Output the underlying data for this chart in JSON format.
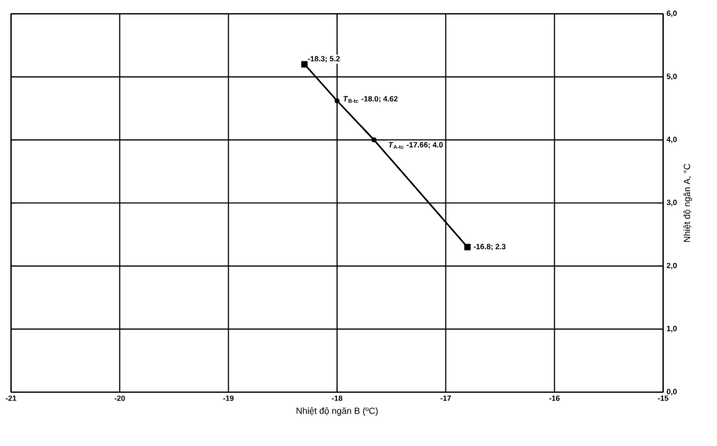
{
  "chart_data": {
    "type": "line",
    "xlabel": "Nhiệt độ ngăn B (ºC)",
    "ylabel": "Nhiệt độ ngăn A, °C",
    "xlim": [
      -21,
      -15
    ],
    "ylim": [
      0,
      6
    ],
    "xticks": [
      -21,
      -20,
      -19,
      -18,
      -17,
      -16,
      -15
    ],
    "yticks": [
      {
        "value": 0,
        "label": "0,0"
      },
      {
        "value": 1,
        "label": "1,0"
      },
      {
        "value": 2,
        "label": "2,0"
      },
      {
        "value": 3,
        "label": "3,0"
      },
      {
        "value": 4,
        "label": "4,0"
      },
      {
        "value": 5,
        "label": "5,0"
      },
      {
        "value": 6,
        "label": "6,0"
      }
    ],
    "grid": true,
    "series": [
      {
        "color": "#000000",
        "marker": "circle",
        "x": [
          -18.3,
          -18.0,
          -17.66,
          -16.8
        ],
        "values": [
          5.2,
          4.62,
          4.0,
          2.3
        ]
      },
      {
        "type": "scatter",
        "color": "#000000",
        "marker": "square",
        "x": [
          -18.3,
          -16.8
        ],
        "values": [
          5.2,
          2.3
        ]
      }
    ],
    "annotations": [
      {
        "text": "-18.3; 5.2",
        "x": -18.3,
        "y": 5.2
      },
      {
        "text": "*T*$_{B-tc}$ -18.0; 4.62",
        "x": -18.0,
        "y": 4.62
      },
      {
        "text": "*T*$_{A-tc}$ -17.66; 4.0",
        "x": -17.66,
        "y": 4.0
      },
      {
        "text": "-16.8; 2.3",
        "x": -16.8,
        "y": 2.3
      }
    ]
  }
}
